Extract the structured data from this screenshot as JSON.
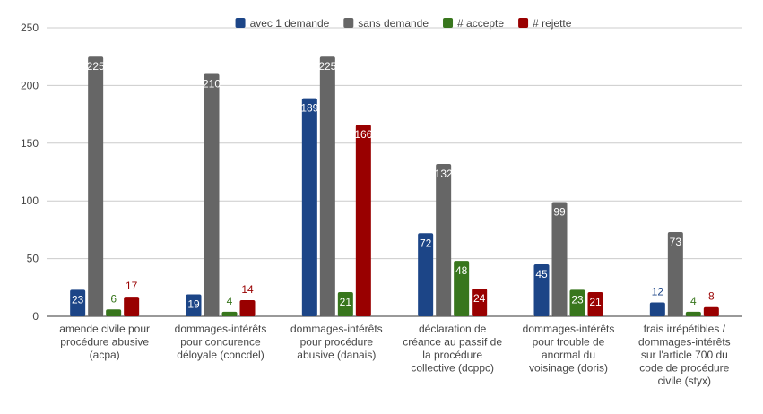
{
  "chart_data": {
    "type": "bar",
    "title": "",
    "xlabel": "",
    "ylabel": "",
    "ylim": [
      0,
      250
    ],
    "yticks": [
      0,
      50,
      100,
      150,
      200,
      250
    ],
    "grid": true,
    "legend_position": "top-center",
    "categories": [
      [
        "amende civile pour",
        "procédure abusive",
        "(acpa)"
      ],
      [
        "dommages-intérêts",
        "pour concurence",
        "déloyale (concdel)"
      ],
      [
        "dommages-intérêts",
        "pour procédure",
        "abusive (danais)"
      ],
      [
        "déclaration de",
        "créance au passif de",
        "la procédure",
        "collective (dcppc)"
      ],
      [
        "dommages-intérêts",
        "pour trouble de",
        "anormal du",
        "voisinage (doris)"
      ],
      [
        "frais irrépétibles /",
        "dommages-intérêts",
        "sur l'article 700 du",
        "code de procédure",
        "civile (styx)"
      ]
    ],
    "series": [
      {
        "name": "avec 1 demande",
        "color": "#1c4587",
        "values": [
          23,
          19,
          189,
          72,
          45,
          12
        ]
      },
      {
        "name": "sans demande",
        "color": "#666666",
        "values": [
          225,
          210,
          225,
          132,
          99,
          73
        ]
      },
      {
        "name": "# accepte",
        "color": "#38761d",
        "values": [
          6,
          4,
          21,
          48,
          23,
          4
        ]
      },
      {
        "name": "# rejette",
        "color": "#990000",
        "values": [
          17,
          14,
          166,
          24,
          21,
          8
        ]
      }
    ]
  }
}
